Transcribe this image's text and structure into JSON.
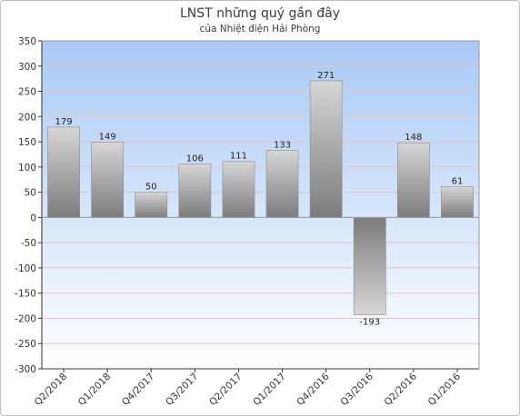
{
  "chart_data": {
    "type": "bar",
    "title": "LNST những quý gần đây",
    "subtitle": "của Nhiệt điện Hải Phòng",
    "categories": [
      "Q2/2018",
      "Q1/2018",
      "Q4/2017",
      "Q3/2017",
      "Q2/2017",
      "Q1/2017",
      "Q4/2016",
      "Q3/2016",
      "Q2/2016",
      "Q1/2016"
    ],
    "values": [
      179,
      149,
      50,
      106,
      111,
      133,
      271,
      -193,
      148,
      61
    ],
    "data_labels": [
      "179",
      "149",
      "50",
      "106",
      "111",
      "133",
      "271",
      "-193",
      "148",
      "61"
    ],
    "ylim": [
      -300,
      350
    ],
    "yticks": [
      "350",
      "300",
      "250",
      "200",
      "150",
      "100",
      "50",
      "0",
      "-50",
      "-100",
      "-150",
      "-200",
      "-250",
      "-300"
    ],
    "ytick_values": [
      350,
      300,
      250,
      200,
      150,
      100,
      50,
      0,
      -50,
      -100,
      -150,
      -200,
      -250,
      -300
    ],
    "grid": true,
    "legend": "none",
    "colors": {
      "plot_bg_top": "#a9c9f5",
      "plot_bg_bottom": "#ffffff",
      "bar_light": "#d6d6d6",
      "bar_dark": "#7c7c7c",
      "grid": "#e7c3c3",
      "axis": "#333333"
    }
  }
}
